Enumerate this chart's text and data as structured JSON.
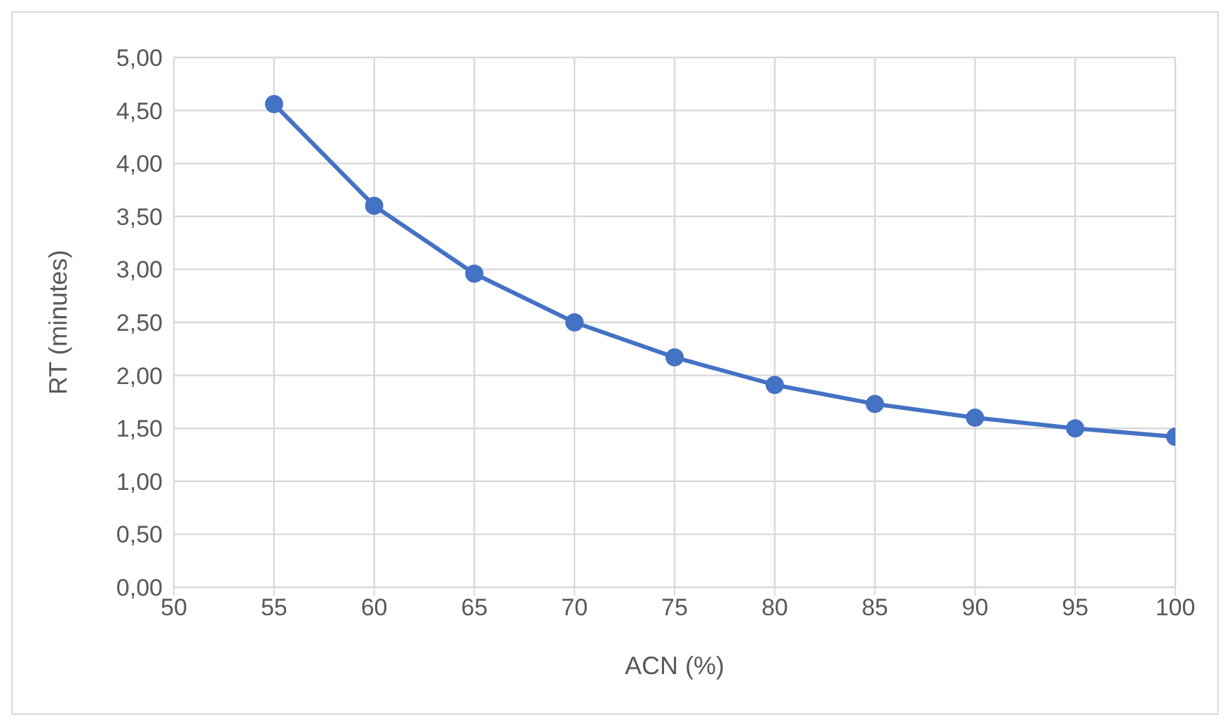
{
  "chart_data": {
    "type": "line",
    "xlabel": "ACN (%)",
    "ylabel": "RT (minutes)",
    "x": [
      55,
      60,
      65,
      70,
      75,
      80,
      85,
      90,
      95,
      100
    ],
    "series": [
      {
        "color": "#4472c4",
        "values": [
          4.56,
          3.6,
          2.96,
          2.5,
          2.17,
          1.91,
          1.73,
          1.6,
          1.5,
          1.42
        ]
      }
    ],
    "xlim": [
      50,
      100
    ],
    "xticks": [
      50,
      55,
      60,
      65,
      70,
      75,
      80,
      85,
      90,
      95,
      100
    ],
    "ylim": [
      0,
      5
    ],
    "yticks": [
      {
        "value": 0,
        "label": "0,00"
      },
      {
        "value": 0.5,
        "label": "0,50"
      },
      {
        "value": 1,
        "label": "1,00"
      },
      {
        "value": 1.5,
        "label": "1,50"
      },
      {
        "value": 2,
        "label": "2,00"
      },
      {
        "value": 2.5,
        "label": "2,50"
      },
      {
        "value": 3,
        "label": "3,00"
      },
      {
        "value": 3.5,
        "label": "3,50"
      },
      {
        "value": 4,
        "label": "4,00"
      },
      {
        "value": 4.5,
        "label": "4,50"
      },
      {
        "value": 5,
        "label": "5,00"
      }
    ],
    "grid": true,
    "marker": "circle",
    "line_style": "solid",
    "legend": false
  }
}
